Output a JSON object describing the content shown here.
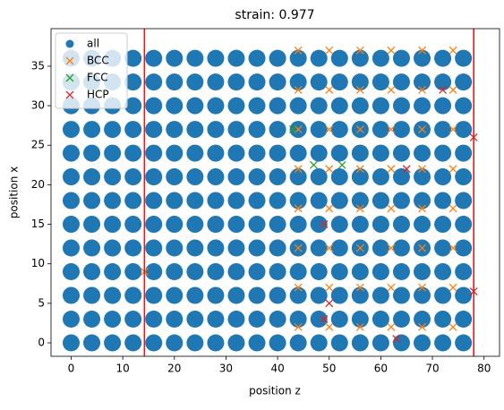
{
  "chart_data": {
    "type": "scatter",
    "title": "strain: 0.977",
    "xlabel": "position z",
    "ylabel": "position x",
    "xlim": [
      -3.9,
      83.0
    ],
    "ylim": [
      -1.7,
      39.75
    ],
    "xticks": [
      0,
      10,
      20,
      30,
      40,
      50,
      60,
      70,
      80
    ],
    "yticks": [
      0,
      5,
      10,
      15,
      20,
      25,
      30,
      35
    ],
    "legend": "upper left",
    "vlines": {
      "color": "#e41a1c",
      "x": [
        14.2,
        78
      ]
    },
    "series": [
      {
        "name": "all",
        "marker": "o",
        "color": "#1f77b4",
        "x": [
          0,
          0,
          0,
          0,
          0,
          0,
          0,
          0,
          0,
          0,
          0,
          0,
          0,
          4,
          4,
          4,
          4,
          4,
          4,
          4,
          4,
          4,
          4,
          4,
          4,
          4,
          8,
          8,
          8,
          8,
          8,
          8,
          8,
          8,
          8,
          8,
          8,
          8,
          8,
          12,
          12,
          12,
          12,
          12,
          12,
          12,
          12,
          12,
          12,
          12,
          12,
          12,
          16,
          16,
          16,
          16,
          16,
          16,
          16,
          16,
          16,
          16,
          16,
          16,
          16,
          20,
          20,
          20,
          20,
          20,
          20,
          20,
          20,
          20,
          20,
          20,
          20,
          20,
          24,
          24,
          24,
          24,
          24,
          24,
          24,
          24,
          24,
          24,
          24,
          24,
          24,
          28,
          28,
          28,
          28,
          28,
          28,
          28,
          28,
          28,
          28,
          28,
          28,
          28,
          32,
          32,
          32,
          32,
          32,
          32,
          32,
          32,
          32,
          32,
          32,
          32,
          32,
          36,
          36,
          36,
          36,
          36,
          36,
          36,
          36,
          36,
          36,
          36,
          36,
          36,
          40,
          40,
          40,
          40,
          40,
          40,
          40,
          40,
          40,
          40,
          40,
          40,
          40,
          44,
          44,
          44,
          44,
          44,
          44,
          44,
          44,
          44,
          44,
          44,
          44,
          44,
          48,
          48,
          48,
          48,
          48,
          48,
          48,
          48,
          48,
          48,
          48,
          48,
          48,
          52,
          52,
          52,
          52,
          52,
          52,
          52,
          52,
          52,
          52,
          52,
          52,
          52,
          56,
          56,
          56,
          56,
          56,
          56,
          56,
          56,
          56,
          56,
          56,
          56,
          56,
          60,
          60,
          60,
          60,
          60,
          60,
          60,
          60,
          60,
          60,
          60,
          60,
          60,
          64,
          64,
          64,
          64,
          64,
          64,
          64,
          64,
          64,
          64,
          64,
          64,
          64,
          68,
          68,
          68,
          68,
          68,
          68,
          68,
          68,
          68,
          68,
          68,
          68,
          68,
          72,
          72,
          72,
          72,
          72,
          72,
          72,
          72,
          72,
          72,
          72,
          72,
          72,
          76,
          76,
          76,
          76,
          76,
          76,
          76,
          76,
          76,
          76,
          76,
          76,
          76
        ],
        "y": [
          0,
          3,
          6,
          9,
          12,
          15,
          18,
          21,
          24,
          27,
          30,
          33,
          36,
          0,
          3,
          6,
          9,
          12,
          15,
          18,
          21,
          24,
          27,
          30,
          33,
          36,
          0,
          3,
          6,
          9,
          12,
          15,
          18,
          21,
          24,
          27,
          30,
          33,
          36,
          0,
          3,
          6,
          9,
          12,
          15,
          18,
          21,
          24,
          27,
          30,
          33,
          36,
          0,
          3,
          6,
          9,
          12,
          15,
          18,
          21,
          24,
          27,
          30,
          33,
          36,
          0,
          3,
          6,
          9,
          12,
          15,
          18,
          21,
          24,
          27,
          30,
          33,
          36,
          0,
          3,
          6,
          9,
          12,
          15,
          18,
          21,
          24,
          27,
          30,
          33,
          36,
          0,
          3,
          6,
          9,
          12,
          15,
          18,
          21,
          24,
          27,
          30,
          33,
          36,
          0,
          3,
          6,
          9,
          12,
          15,
          18,
          21,
          24,
          27,
          30,
          33,
          36,
          0,
          3,
          6,
          9,
          12,
          15,
          18,
          21,
          24,
          27,
          30,
          33,
          36,
          0,
          3,
          6,
          9,
          12,
          15,
          18,
          21,
          24,
          27,
          30,
          33,
          36,
          0,
          3,
          6,
          9,
          12,
          15,
          18,
          21,
          24,
          27,
          30,
          33,
          36,
          0,
          3,
          6,
          9,
          12,
          15,
          18,
          21,
          24,
          27,
          30,
          33,
          36,
          0,
          3,
          6,
          9,
          12,
          15,
          18,
          21,
          24,
          27,
          30,
          33,
          36,
          0,
          3,
          6,
          9,
          12,
          15,
          18,
          21,
          24,
          27,
          30,
          33,
          36,
          0,
          3,
          6,
          9,
          12,
          15,
          18,
          21,
          24,
          27,
          30,
          33,
          36,
          0,
          3,
          6,
          9,
          12,
          15,
          18,
          21,
          24,
          27,
          30,
          33,
          36,
          0,
          3,
          6,
          9,
          12,
          15,
          18,
          21,
          24,
          27,
          30,
          33,
          36,
          0,
          3,
          6,
          9,
          12,
          15,
          18,
          21,
          24,
          27,
          30,
          33,
          36,
          0,
          3,
          6,
          9,
          12,
          15,
          18,
          21,
          24,
          27,
          30,
          33,
          36
        ]
      },
      {
        "name": "BCC",
        "marker": "x",
        "color": "#ff7f0e",
        "x": [
          14.2,
          44,
          44,
          44,
          44,
          44,
          44,
          44,
          44,
          50,
          50,
          50,
          50,
          50,
          50,
          50,
          50,
          56,
          56,
          56,
          56,
          56,
          56,
          56,
          56,
          62,
          62,
          62,
          62,
          62,
          62,
          62,
          62,
          68,
          68,
          68,
          68,
          68,
          68,
          68,
          68,
          74,
          74,
          74,
          74,
          74,
          74,
          74,
          74
        ],
        "y": [
          9,
          2,
          7,
          12,
          17,
          22,
          27,
          32,
          37,
          2,
          7,
          12,
          17,
          22,
          27,
          32,
          37,
          2,
          7,
          12,
          17,
          22,
          27,
          32,
          37,
          2,
          7,
          12,
          17,
          22,
          27,
          32,
          37,
          2,
          7,
          12,
          17,
          22,
          27,
          32,
          37,
          2,
          7,
          12,
          17,
          22,
          27,
          32,
          37
        ]
      },
      {
        "name": "FCC",
        "marker": "x",
        "color": "#2ca02c",
        "x": [
          43,
          47,
          52.5
        ],
        "y": [
          27,
          22.5,
          22.5
        ]
      },
      {
        "name": "HCP",
        "marker": "x",
        "color": "#d62728",
        "x": [
          49,
          50,
          49,
          63,
          65,
          72,
          78,
          78
        ],
        "y": [
          15,
          5,
          3,
          0.5,
          22,
          32,
          26,
          6.5
        ]
      }
    ]
  }
}
